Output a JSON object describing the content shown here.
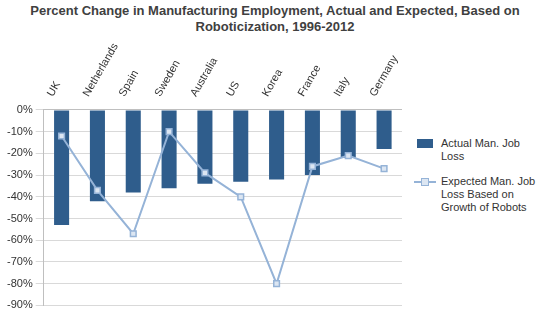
{
  "chart_data": {
    "type": "bar",
    "title": "Percent Change in Manufacturing Employment, Actual and Expected, Based on Roboticization, 1996-2012",
    "categories": [
      "UK",
      "Netherlands",
      "Spain",
      "Sweden",
      "Australia",
      "US",
      "Korea",
      "France",
      "Italy",
      "Germany"
    ],
    "series": [
      {
        "name": "Actual Man. Job Loss",
        "type": "bar",
        "color": "#2f5d8c",
        "values": [
          -53,
          -42,
          -38,
          -36,
          -34,
          -33,
          -32,
          -30,
          -22,
          -18
        ]
      },
      {
        "name": "Expected Man. Job Loss Based on Growth of Robots",
        "type": "line",
        "color": "#95b3d7",
        "marker": "square",
        "values": [
          -12,
          -37,
          -57,
          -10,
          -29,
          -40,
          -80,
          -26,
          -21,
          -27
        ]
      }
    ],
    "ylim": [
      -90,
      0
    ],
    "yticks": [
      {
        "value": 0,
        "label": "0%"
      },
      {
        "value": -10,
        "label": "-10%"
      },
      {
        "value": -20,
        "label": "-20%"
      },
      {
        "value": -30,
        "label": "-30%"
      },
      {
        "value": -40,
        "label": "-40%"
      },
      {
        "value": -50,
        "label": "-50%"
      },
      {
        "value": -60,
        "label": "-60%"
      },
      {
        "value": -70,
        "label": "-70%"
      },
      {
        "value": -80,
        "label": "-80%"
      },
      {
        "value": -90,
        "label": "-90%"
      }
    ],
    "grid": true,
    "legend": "right"
  }
}
